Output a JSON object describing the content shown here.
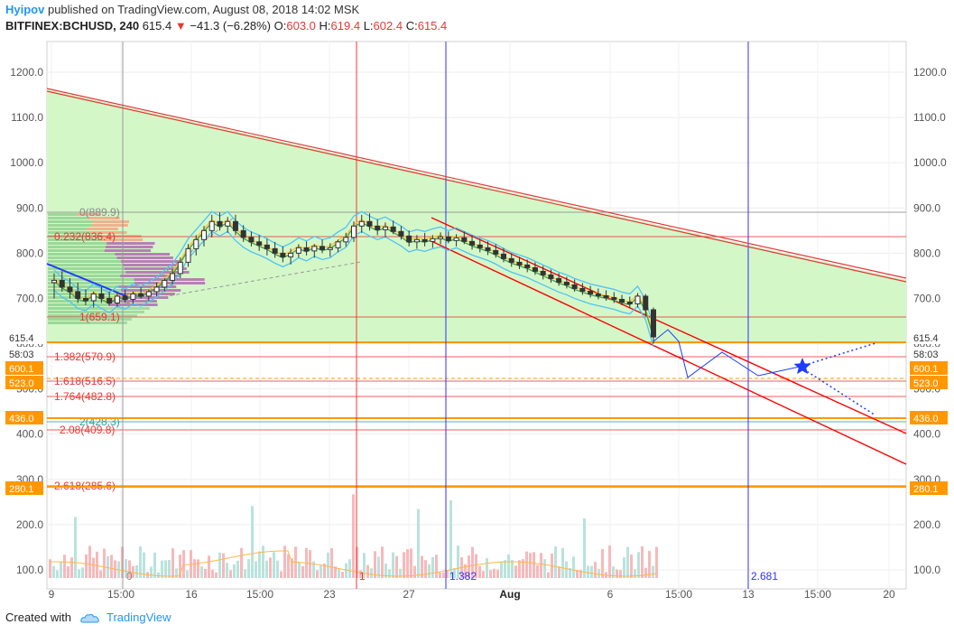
{
  "header": {
    "author": "Hyipov",
    "published": "published on TradingView.com, August 08, 2018 14:02 MSK",
    "symbol": "BITFINEX:BCHUSD, 240",
    "last": "615.4",
    "change": "−41.3 (−6.28%)",
    "open_label": "O:",
    "open": "603.0",
    "high_label": "H:",
    "high": "619.4",
    "low_label": "L:",
    "low": "602.4",
    "close_label": "C:",
    "close": "615.4"
  },
  "footer": {
    "created_with": "Created with",
    "brand": "TradingView"
  },
  "colors": {
    "up": "#26a69a",
    "down": "#ef5350",
    "fib": "#e53935",
    "channel": "#ff0000",
    "vline_blue": "#3030ff",
    "orange_tag": "#ff9800",
    "triangle_fill": "#d4f7c8"
  },
  "chart_data": {
    "type": "candlestick",
    "y_axis_ticks": [
      1200,
      1100,
      1000,
      900,
      800,
      700,
      600,
      500,
      400,
      300,
      200,
      100
    ],
    "y_axis_tick_labels": [
      "1200.0",
      "1100.0",
      "1000.0",
      "900.0",
      "800.0",
      "700.0",
      "600.0",
      "500.0",
      "400.0",
      "300.0",
      "200.0",
      "100.0"
    ],
    "x_axis_labels": [
      "9",
      "15:00",
      "16",
      "15:00",
      "23",
      "27",
      "Aug",
      "6",
      "15:00",
      "13",
      "15:00",
      "20"
    ],
    "price_tags": [
      {
        "label": "615.4",
        "value": 615.4,
        "style": "last"
      },
      {
        "label": "58:03",
        "value": 593,
        "style": "timer"
      },
      {
        "label": "600.1",
        "value": 570,
        "style": "orange"
      },
      {
        "label": "523.0",
        "value": 516,
        "style": "orange"
      },
      {
        "label": "436.0",
        "value": 434,
        "style": "orange"
      },
      {
        "label": "280.1",
        "value": 280,
        "style": "orange"
      }
    ],
    "fib_levels": [
      {
        "label": "0(889.9)",
        "value": 889.9,
        "color": "#888888"
      },
      {
        "label": "0.232(836.4)",
        "value": 836.4,
        "color": "#e53935"
      },
      {
        "label": "1(659.1)",
        "value": 659.1,
        "color": "#e53935"
      },
      {
        "label": "1.382(570.9)",
        "value": 570.9,
        "color": "#e53935"
      },
      {
        "label": "1.618(516.5)",
        "value": 516.5,
        "color": "#e53935"
      },
      {
        "label": "1.764(482.8)",
        "value": 482.8,
        "color": "#e53935"
      },
      {
        "label": "2(428.3)",
        "value": 428.3,
        "color": "#26a69a"
      },
      {
        "label": "2.08(409.8)",
        "value": 409.8,
        "color": "#e53935"
      },
      {
        "label": "2.618(285.6)",
        "value": 285.6,
        "color": "#e53935"
      }
    ],
    "time_fib_labels": [
      "0",
      "1",
      "1.382",
      "2.681"
    ],
    "ohlc": [
      [
        735,
        755,
        700,
        740
      ],
      [
        740,
        760,
        715,
        725
      ],
      [
        725,
        745,
        700,
        715
      ],
      [
        715,
        735,
        690,
        700
      ],
      [
        700,
        720,
        685,
        695
      ],
      [
        695,
        715,
        680,
        710
      ],
      [
        710,
        725,
        690,
        700
      ],
      [
        700,
        715,
        685,
        690
      ],
      [
        690,
        712,
        682,
        705
      ],
      [
        705,
        720,
        690,
        698
      ],
      [
        698,
        715,
        688,
        710
      ],
      [
        710,
        725,
        700,
        705
      ],
      [
        705,
        720,
        695,
        715
      ],
      [
        715,
        735,
        705,
        725
      ],
      [
        725,
        745,
        715,
        740
      ],
      [
        740,
        765,
        730,
        755
      ],
      [
        755,
        790,
        745,
        780
      ],
      [
        780,
        820,
        770,
        810
      ],
      [
        810,
        840,
        795,
        830
      ],
      [
        830,
        860,
        815,
        850
      ],
      [
        850,
        885,
        835,
        870
      ],
      [
        870,
        890,
        850,
        860
      ],
      [
        860,
        880,
        845,
        870
      ],
      [
        870,
        885,
        840,
        850
      ],
      [
        850,
        862,
        825,
        835
      ],
      [
        835,
        848,
        815,
        825
      ],
      [
        825,
        840,
        805,
        818
      ],
      [
        818,
        832,
        795,
        810
      ],
      [
        810,
        825,
        790,
        800
      ],
      [
        800,
        815,
        780,
        792
      ],
      [
        792,
        810,
        775,
        800
      ],
      [
        800,
        820,
        790,
        812
      ],
      [
        812,
        826,
        795,
        805
      ],
      [
        805,
        820,
        790,
        815
      ],
      [
        815,
        830,
        800,
        808
      ],
      [
        808,
        822,
        792,
        812
      ],
      [
        812,
        830,
        802,
        825
      ],
      [
        825,
        845,
        815,
        835
      ],
      [
        835,
        870,
        825,
        860
      ],
      [
        860,
        885,
        845,
        870
      ],
      [
        870,
        888,
        850,
        860
      ],
      [
        860,
        875,
        840,
        852
      ],
      [
        852,
        868,
        835,
        858
      ],
      [
        858,
        872,
        842,
        848
      ],
      [
        848,
        860,
        830,
        838
      ],
      [
        838,
        850,
        815,
        825
      ],
      [
        825,
        840,
        810,
        830
      ],
      [
        830,
        845,
        815,
        826
      ],
      [
        826,
        840,
        812,
        832
      ],
      [
        832,
        846,
        820,
        836
      ],
      [
        836,
        848,
        822,
        828
      ],
      [
        828,
        842,
        815,
        834
      ],
      [
        834,
        848,
        820,
        826
      ],
      [
        826,
        840,
        808,
        818
      ],
      [
        818,
        832,
        802,
        812
      ],
      [
        812,
        826,
        796,
        806
      ],
      [
        806,
        820,
        790,
        798
      ],
      [
        798,
        812,
        780,
        788
      ],
      [
        788,
        800,
        770,
        780
      ],
      [
        780,
        792,
        765,
        774
      ],
      [
        774,
        786,
        758,
        768
      ],
      [
        768,
        780,
        752,
        760
      ],
      [
        760,
        772,
        742,
        752
      ],
      [
        752,
        764,
        735,
        744
      ],
      [
        744,
        756,
        728,
        736
      ],
      [
        736,
        748,
        722,
        730
      ],
      [
        730,
        742,
        715,
        722
      ],
      [
        722,
        734,
        708,
        716
      ],
      [
        716,
        728,
        702,
        710
      ],
      [
        710,
        722,
        698,
        706
      ],
      [
        706,
        718,
        695,
        702
      ],
      [
        702,
        714,
        690,
        698
      ],
      [
        698,
        708,
        685,
        692
      ],
      [
        692,
        704,
        680,
        688
      ],
      [
        688,
        712,
        680,
        705
      ],
      [
        705,
        710,
        660,
        675
      ],
      [
        675,
        680,
        600,
        615
      ]
    ],
    "volume_note": "volume histogram bars along bottom"
  }
}
